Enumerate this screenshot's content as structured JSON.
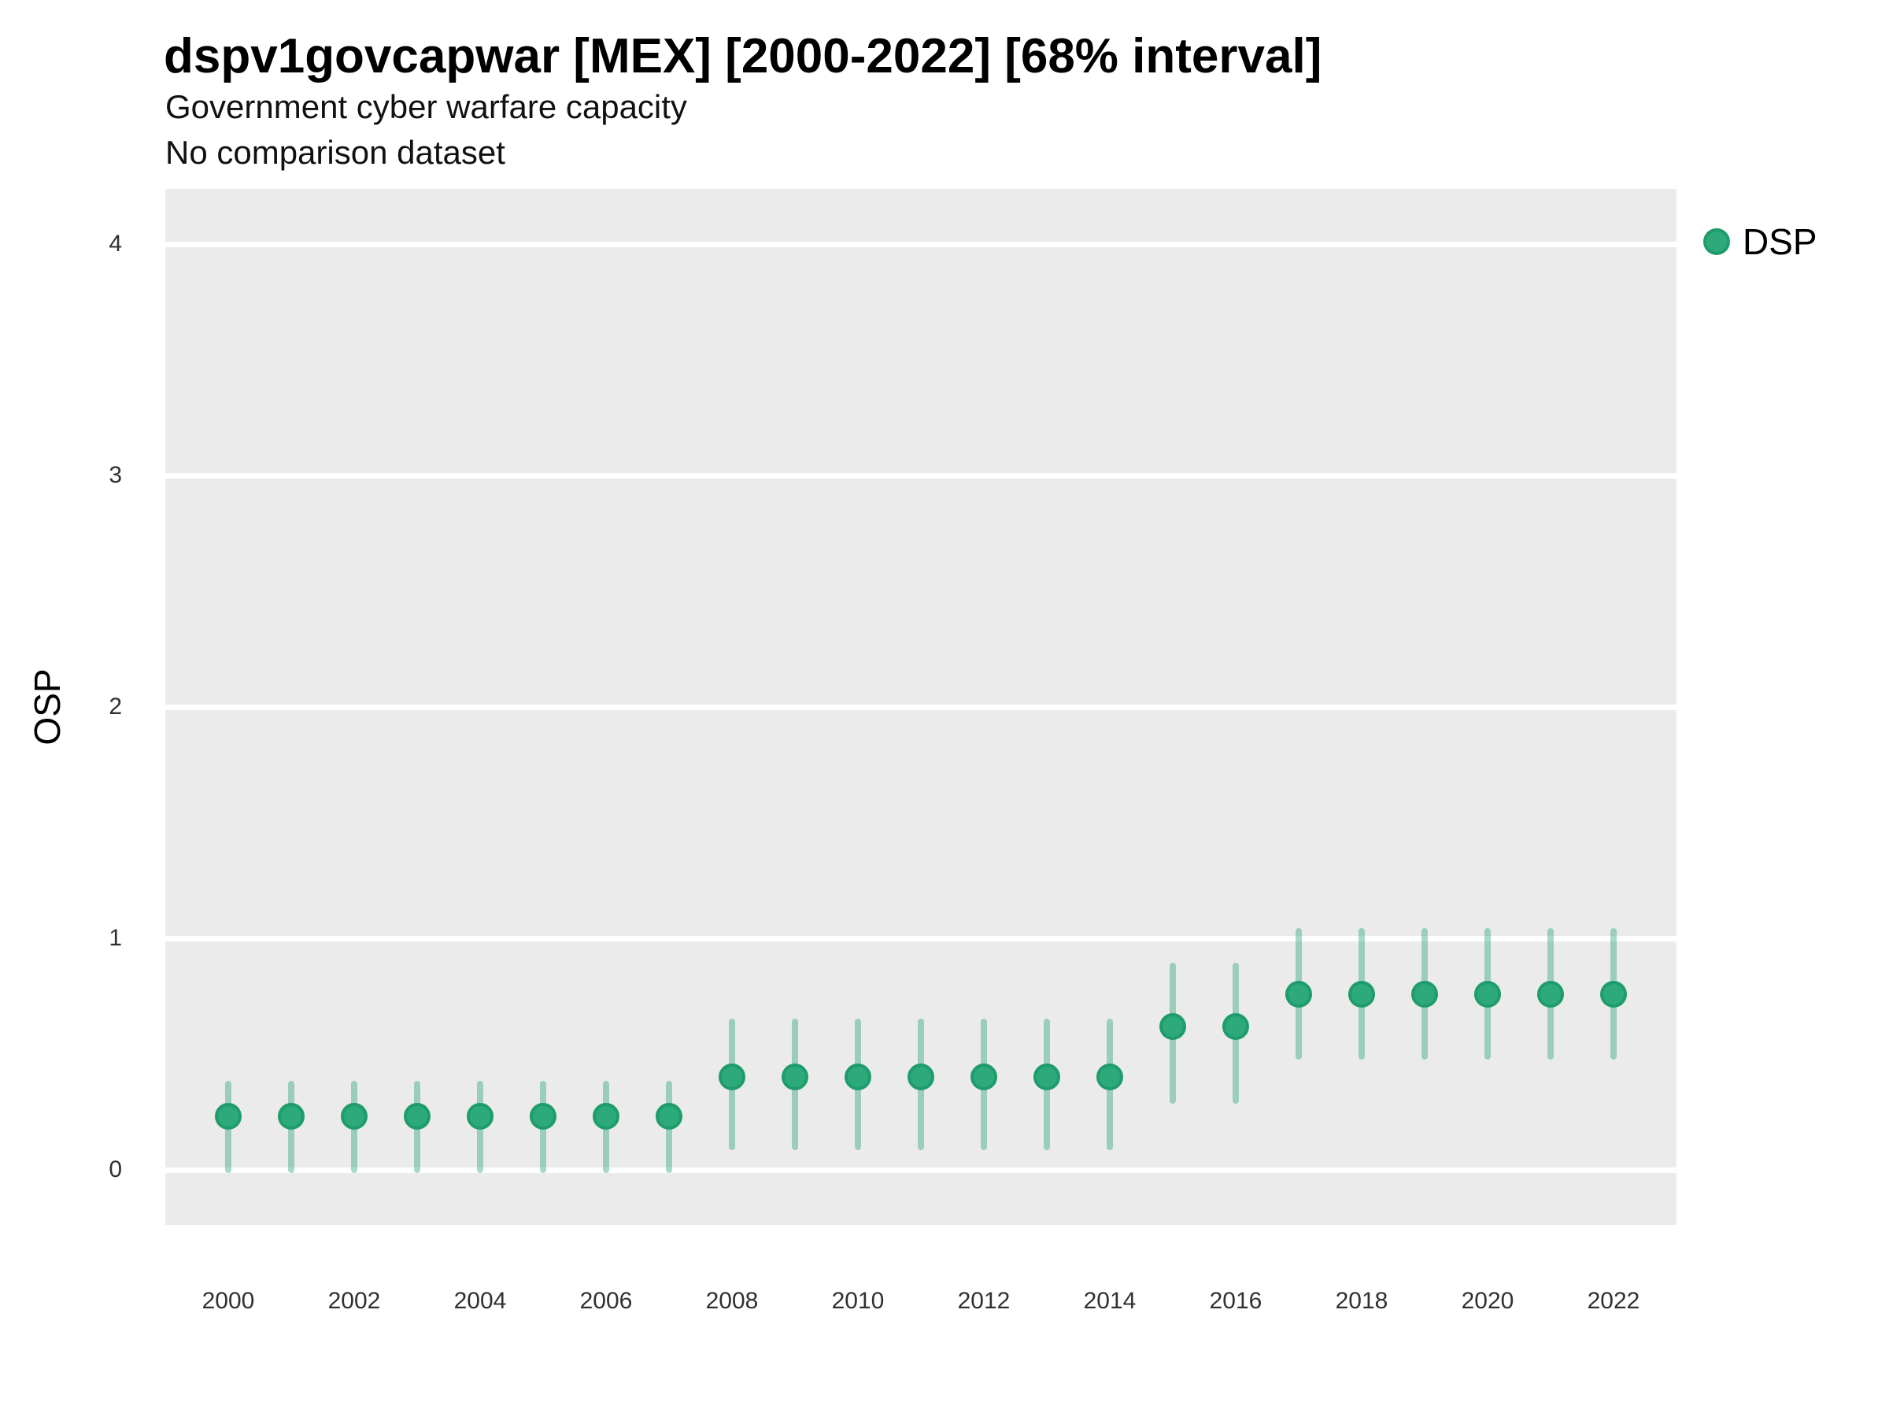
{
  "chart_data": {
    "type": "pointrange",
    "title": "dspv1govcapwar [MEX] [2000-2022] [68% interval]",
    "subtitle": "Government cyber warfare capacity",
    "note": "No comparison dataset",
    "xlabel": "",
    "ylabel": "OSP",
    "ylim": [
      -0.24,
      4.24
    ],
    "yticks": [
      "0",
      "1",
      "2",
      "3",
      "4"
    ],
    "xticks": [
      "2000",
      "2002",
      "2004",
      "2006",
      "2008",
      "2010",
      "2012",
      "2014",
      "2016",
      "2018",
      "2020",
      "2022"
    ],
    "grid": "major-horizontal-only",
    "legend_position": "right-top",
    "legend": [
      {
        "label": "DSP",
        "color": "#2caa7b"
      }
    ],
    "series": [
      {
        "name": "DSP",
        "interval": "68%",
        "points": [
          {
            "year": 2000,
            "value": 0.23,
            "lower": 0.0,
            "upper": 0.37
          },
          {
            "year": 2001,
            "value": 0.23,
            "lower": 0.0,
            "upper": 0.37
          },
          {
            "year": 2002,
            "value": 0.23,
            "lower": 0.0,
            "upper": 0.37
          },
          {
            "year": 2003,
            "value": 0.23,
            "lower": 0.0,
            "upper": 0.37
          },
          {
            "year": 2004,
            "value": 0.23,
            "lower": 0.0,
            "upper": 0.37
          },
          {
            "year": 2005,
            "value": 0.23,
            "lower": 0.0,
            "upper": 0.37
          },
          {
            "year": 2006,
            "value": 0.23,
            "lower": 0.0,
            "upper": 0.37
          },
          {
            "year": 2007,
            "value": 0.23,
            "lower": 0.0,
            "upper": 0.37
          },
          {
            "year": 2008,
            "value": 0.4,
            "lower": 0.1,
            "upper": 0.64
          },
          {
            "year": 2009,
            "value": 0.4,
            "lower": 0.1,
            "upper": 0.64
          },
          {
            "year": 2010,
            "value": 0.4,
            "lower": 0.1,
            "upper": 0.64
          },
          {
            "year": 2011,
            "value": 0.4,
            "lower": 0.1,
            "upper": 0.64
          },
          {
            "year": 2012,
            "value": 0.4,
            "lower": 0.1,
            "upper": 0.64
          },
          {
            "year": 2013,
            "value": 0.4,
            "lower": 0.1,
            "upper": 0.64
          },
          {
            "year": 2014,
            "value": 0.4,
            "lower": 0.1,
            "upper": 0.64
          },
          {
            "year": 2015,
            "value": 0.62,
            "lower": 0.3,
            "upper": 0.88
          },
          {
            "year": 2016,
            "value": 0.62,
            "lower": 0.3,
            "upper": 0.88
          },
          {
            "year": 2017,
            "value": 0.76,
            "lower": 0.49,
            "upper": 1.03
          },
          {
            "year": 2018,
            "value": 0.76,
            "lower": 0.49,
            "upper": 1.03
          },
          {
            "year": 2019,
            "value": 0.76,
            "lower": 0.49,
            "upper": 1.03
          },
          {
            "year": 2020,
            "value": 0.76,
            "lower": 0.49,
            "upper": 1.03
          },
          {
            "year": 2021,
            "value": 0.76,
            "lower": 0.49,
            "upper": 1.03
          },
          {
            "year": 2022,
            "value": 0.76,
            "lower": 0.49,
            "upper": 1.03
          }
        ]
      }
    ],
    "colors": {
      "point_fill": "#2caa7b",
      "point_ring": "#1f9c6c",
      "interval_bar": "rgba(44,167,120,0.42)",
      "panel_background": "#ebebeb",
      "gridline": "#ffffff"
    }
  }
}
